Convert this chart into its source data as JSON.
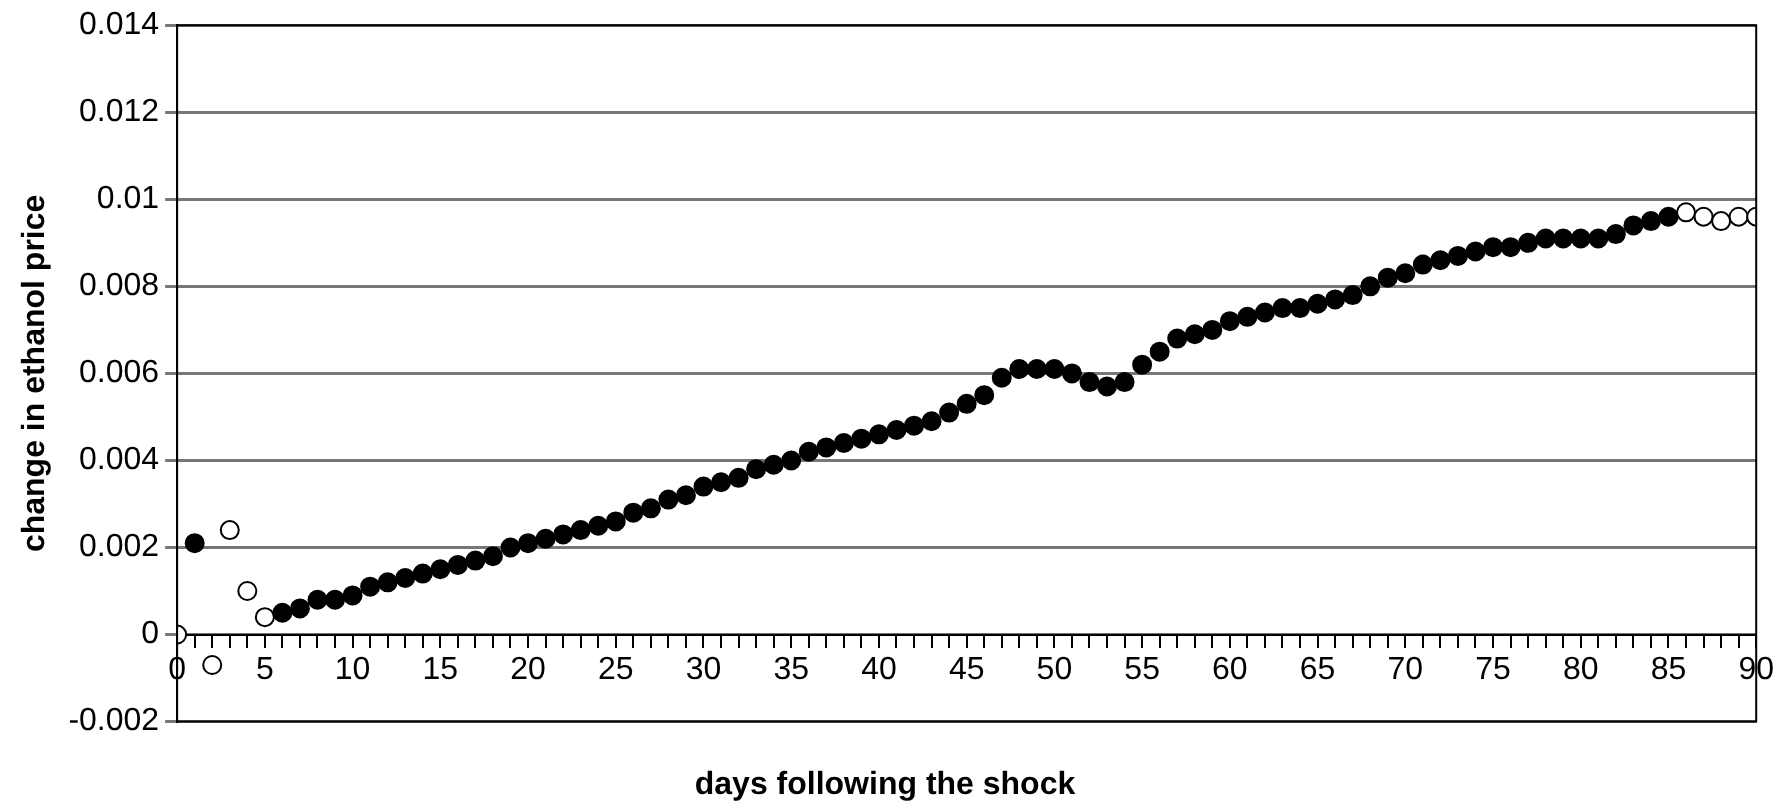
{
  "chart_data": {
    "type": "scatter",
    "xlabel": "days following the shock",
    "ylabel": "change in ethanol price",
    "xlim": [
      0,
      90
    ],
    "ylim": [
      -0.002,
      0.014
    ],
    "xticks": [
      0,
      {
        "value": 1,
        "label": null
      },
      {
        "value": 2,
        "label": null
      },
      {
        "value": 3,
        "label": null
      },
      {
        "value": 4,
        "label": null
      },
      5,
      {
        "value": 6,
        "label": null
      },
      {
        "value": 7,
        "label": null
      },
      {
        "value": 8,
        "label": null
      },
      {
        "value": 9,
        "label": null
      },
      10,
      {
        "value": 11,
        "label": null
      },
      {
        "value": 12,
        "label": null
      },
      {
        "value": 13,
        "label": null
      },
      {
        "value": 14,
        "label": null
      },
      15,
      {
        "value": 16,
        "label": null
      },
      {
        "value": 17,
        "label": null
      },
      {
        "value": 18,
        "label": null
      },
      {
        "value": 19,
        "label": null
      },
      20,
      {
        "value": 21,
        "label": null
      },
      {
        "value": 22,
        "label": null
      },
      {
        "value": 23,
        "label": null
      },
      {
        "value": 24,
        "label": null
      },
      25,
      {
        "value": 26,
        "label": null
      },
      {
        "value": 27,
        "label": null
      },
      {
        "value": 28,
        "label": null
      },
      {
        "value": 29,
        "label": null
      },
      30,
      {
        "value": 31,
        "label": null
      },
      {
        "value": 32,
        "label": null
      },
      {
        "value": 33,
        "label": null
      },
      {
        "value": 34,
        "label": null
      },
      35,
      {
        "value": 36,
        "label": null
      },
      {
        "value": 37,
        "label": null
      },
      {
        "value": 38,
        "label": null
      },
      {
        "value": 39,
        "label": null
      },
      40,
      {
        "value": 41,
        "label": null
      },
      {
        "value": 42,
        "label": null
      },
      {
        "value": 43,
        "label": null
      },
      {
        "value": 44,
        "label": null
      },
      45,
      {
        "value": 46,
        "label": null
      },
      {
        "value": 47,
        "label": null
      },
      {
        "value": 48,
        "label": null
      },
      {
        "value": 49,
        "label": null
      },
      50,
      {
        "value": 51,
        "label": null
      },
      {
        "value": 52,
        "label": null
      },
      {
        "value": 53,
        "label": null
      },
      {
        "value": 54,
        "label": null
      },
      55,
      {
        "value": 56,
        "label": null
      },
      {
        "value": 57,
        "label": null
      },
      {
        "value": 58,
        "label": null
      },
      {
        "value": 59,
        "label": null
      },
      60,
      {
        "value": 61,
        "label": null
      },
      {
        "value": 62,
        "label": null
      },
      {
        "value": 63,
        "label": null
      },
      {
        "value": 64,
        "label": null
      },
      65,
      {
        "value": 66,
        "label": null
      },
      {
        "value": 67,
        "label": null
      },
      {
        "value": 68,
        "label": null
      },
      {
        "value": 69,
        "label": null
      },
      70,
      {
        "value": 71,
        "label": null
      },
      {
        "value": 72,
        "label": null
      },
      {
        "value": 73,
        "label": null
      },
      {
        "value": 74,
        "label": null
      },
      75,
      {
        "value": 76,
        "label": null
      },
      {
        "value": 77,
        "label": null
      },
      {
        "value": 78,
        "label": null
      },
      {
        "value": 79,
        "label": null
      },
      80,
      {
        "value": 81,
        "label": null
      },
      {
        "value": 82,
        "label": null
      },
      {
        "value": 83,
        "label": null
      },
      {
        "value": 84,
        "label": null
      },
      85,
      {
        "value": 86,
        "label": null
      },
      {
        "value": 87,
        "label": null
      },
      {
        "value": 88,
        "label": null
      },
      {
        "value": 89,
        "label": null
      },
      90
    ],
    "yticks": [
      -0.002,
      0,
      0.002,
      0.004,
      0.006,
      0.008,
      0.01,
      0.012,
      0.014
    ],
    "grid": "y",
    "marker": "circle",
    "series": [
      {
        "color": "#000000",
        "x": [
          1,
          6,
          7,
          8,
          9,
          10,
          11,
          12,
          13,
          14,
          15,
          16,
          17,
          18,
          19,
          20,
          21,
          22,
          23,
          24,
          25,
          26,
          27,
          28,
          29,
          30,
          31,
          32,
          33,
          34,
          35,
          36,
          37,
          38,
          39,
          40,
          41,
          42,
          43,
          44,
          45,
          46,
          47,
          48,
          49,
          50,
          51,
          52,
          53,
          54,
          55,
          56,
          57,
          58,
          59,
          60,
          61,
          62,
          63,
          64,
          65,
          66,
          67,
          68,
          69,
          70,
          71,
          72,
          73,
          74,
          75,
          76,
          77,
          78,
          79,
          80,
          81,
          82,
          83,
          84,
          85
        ],
        "values": [
          0.0021,
          0.0005,
          0.0006,
          0.0008,
          0.0008,
          0.0009,
          0.0011,
          0.0012,
          0.0013,
          0.0014,
          0.0015,
          0.0016,
          0.0017,
          0.0018,
          0.002,
          0.0021,
          0.0022,
          0.0023,
          0.0024,
          0.0025,
          0.0026,
          0.0028,
          0.0029,
          0.0031,
          0.0032,
          0.0034,
          0.0035,
          0.0036,
          0.0038,
          0.0039,
          0.004,
          0.0042,
          0.0043,
          0.0044,
          0.0045,
          0.0046,
          0.0047,
          0.0048,
          0.0049,
          0.0051,
          0.0053,
          0.0055,
          0.0059,
          0.0061,
          0.0061,
          0.0061,
          0.006,
          0.0058,
          0.0057,
          0.0058,
          0.0062,
          0.0065,
          0.0068,
          0.0069,
          0.007,
          0.0072,
          0.0073,
          0.0074,
          0.0075,
          0.0075,
          0.0076,
          0.0077,
          0.0078,
          0.008,
          0.0082,
          0.0083,
          0.0085,
          0.0086,
          0.0087,
          0.0088,
          0.0089,
          0.0089,
          0.009,
          0.0091,
          0.0091,
          0.0091,
          0.0091,
          0.0092,
          0.0094,
          0.0095,
          0.0096
        ]
      },
      {
        "color": "#ffffff",
        "x": [
          0,
          2,
          3,
          4,
          5,
          86,
          87,
          88,
          89,
          90
        ],
        "values": [
          0,
          -0.0007,
          0.0024,
          0.001,
          0.0004,
          0.0097,
          0.0096,
          0.0095,
          0.0096,
          0.0096
        ]
      }
    ]
  }
}
